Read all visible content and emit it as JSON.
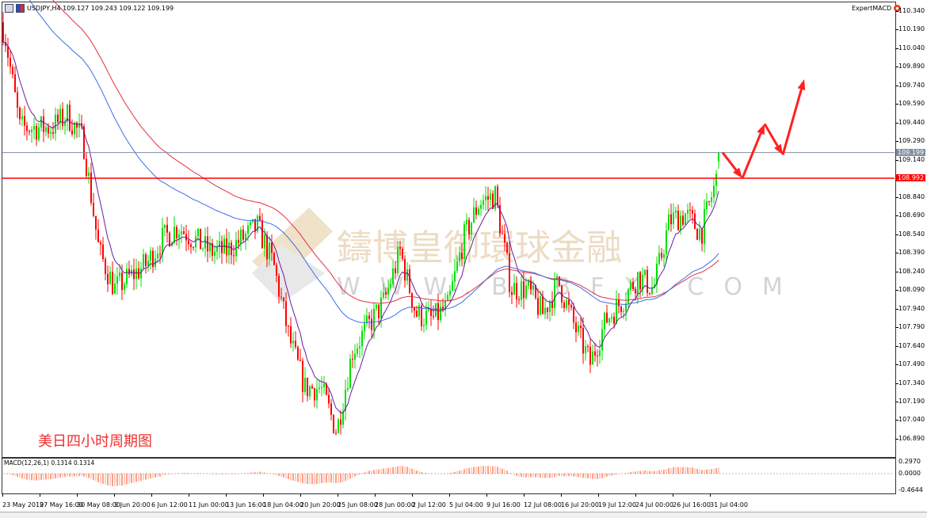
{
  "window": {
    "symbol_line": "USDJPY,H4  109.127 109.243 109.122 109.199",
    "expert_label": "ExpertMACD"
  },
  "annotation": "美日四小时周期图",
  "watermark": {
    "cn": "鑄博皇御環球金融",
    "url": "WWW.BIBFX.COM"
  },
  "indicator": {
    "label": "MACD(12,26,1) 0.1314 0.1314",
    "axis": [
      "0.2970",
      "0.0000",
      "-0.4644"
    ]
  },
  "colors": {
    "bull": "#00e000",
    "bear": "#ff0000",
    "ma_fast": "#6a1b9a",
    "ma_red": "#e03040",
    "ma_blue": "#3a6ee8",
    "macd": "#ff4010",
    "macd_alt": "#ffa080",
    "bid_line": "#8090a0",
    "level_line": "#ff0000",
    "arrows": "#ff2020"
  },
  "chart_data": {
    "type": "candlestick",
    "symbol": "USDJPY",
    "timeframe": "H4",
    "ohlc_last": {
      "open": 109.127,
      "high": 109.243,
      "low": 109.122,
      "close": 109.199
    },
    "ylim": [
      106.8,
      110.43
    ],
    "price_ticks": [
      "110.340",
      "110.190",
      "110.040",
      "109.890",
      "109.740",
      "109.590",
      "109.440",
      "109.290",
      "109.140",
      "108.840",
      "108.690",
      "108.540",
      "108.390",
      "108.240",
      "108.090",
      "107.940",
      "107.790",
      "107.640",
      "107.490",
      "107.340",
      "107.190",
      "107.040",
      "106.890"
    ],
    "current_price": "109.199",
    "level_price": "108.992",
    "time_ticks": [
      "23 May 2019",
      "27 May 16:00",
      "30 May 08:00",
      "3 Jun 20:00",
      "6 Jun 12:00",
      "11 Jun 00:00",
      "13 Jun 16:00",
      "18 Jun 04:00",
      "20 Jun 20:00",
      "25 Jun 08:00",
      "28 Jun 00:00",
      "2 Jul 12:00",
      "5 Jul 04:00",
      "9 Jul 16:00",
      "12 Jul 08:00",
      "16 Jul 20:00",
      "19 Jul 12:00",
      "24 Jul 00:00",
      "26 Jul 16:00",
      "31 Jul 04:00"
    ],
    "approx_closes": [
      110.2,
      109.4,
      109.4,
      109.4,
      109.5,
      109.3,
      108.4,
      108.1,
      108.2,
      108.3,
      108.5,
      108.6,
      108.5,
      108.4,
      108.4,
      108.5,
      108.6,
      108.3,
      107.7,
      107.3,
      107.3,
      106.95,
      107.6,
      107.8,
      108.0,
      108.4,
      107.9,
      107.85,
      107.95,
      108.5,
      108.8,
      108.85,
      108.1,
      108.1,
      107.9,
      108.15,
      107.8,
      107.5,
      107.85,
      108.0,
      108.2,
      108.1,
      108.65,
      108.7,
      108.55,
      109.0,
      109.199
    ],
    "projection_prices": [
      109.199,
      108.992,
      109.43,
      109.18,
      109.79
    ]
  }
}
